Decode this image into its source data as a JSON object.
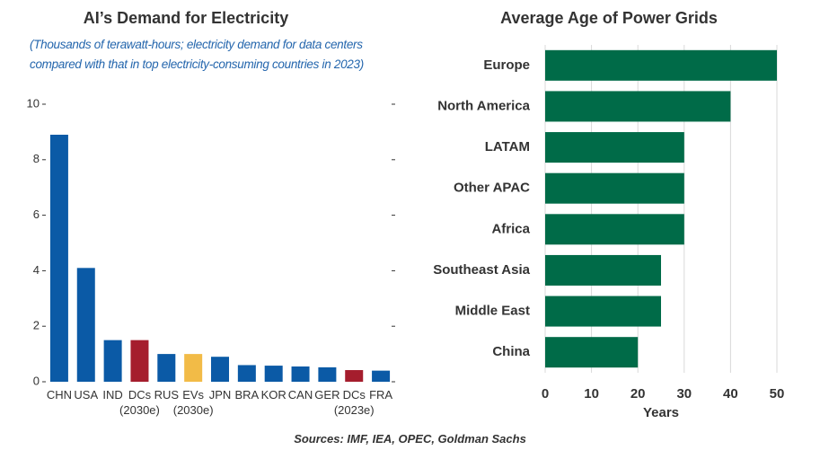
{
  "chart_data": [
    {
      "type": "bar",
      "title": "AI’s Demand for Electricity",
      "subtitle": "(Thousands of terawatt-hours; electricity demand for data centers compared with that in top electricity-consuming countries in 2023)",
      "categories": [
        "CHN",
        "USA",
        "IND",
        "DCs\n(2030e)",
        "RUS",
        "EVs\n(2030e)",
        "JPN",
        "BRA",
        "KOR",
        "CAN",
        "GER",
        "DCs\n(2023e)",
        "FRA"
      ],
      "values": [
        8.9,
        4.1,
        1.5,
        1.5,
        1.0,
        1.0,
        0.9,
        0.6,
        0.58,
        0.55,
        0.52,
        0.42,
        0.4
      ],
      "colors": [
        "#0b5aa6",
        "#0b5aa6",
        "#0b5aa6",
        "#a51d2d",
        "#0b5aa6",
        "#f2bb47",
        "#0b5aa6",
        "#0b5aa6",
        "#0b5aa6",
        "#0b5aa6",
        "#0b5aa6",
        "#a51d2d",
        "#0b5aa6"
      ],
      "ylim": [
        0,
        10
      ],
      "yticks": [
        0,
        2,
        4,
        6,
        8,
        10
      ],
      "grid": false
    },
    {
      "type": "barh",
      "title": "Average Age of Power Grids",
      "categories": [
        "Europe",
        "North America",
        "LATAM",
        "Other APAC",
        "Africa",
        "Southeast Asia",
        "Middle East",
        "China"
      ],
      "values": [
        50,
        40,
        30,
        30,
        30,
        25,
        25,
        20
      ],
      "color": "#006b48",
      "xlim": [
        0,
        50
      ],
      "xticks": [
        0,
        10,
        20,
        30,
        40,
        50
      ],
      "xlabel": "Years",
      "grid": true
    }
  ],
  "source": "Sources: IMF, IEA, OPEC, Goldman Sachs"
}
